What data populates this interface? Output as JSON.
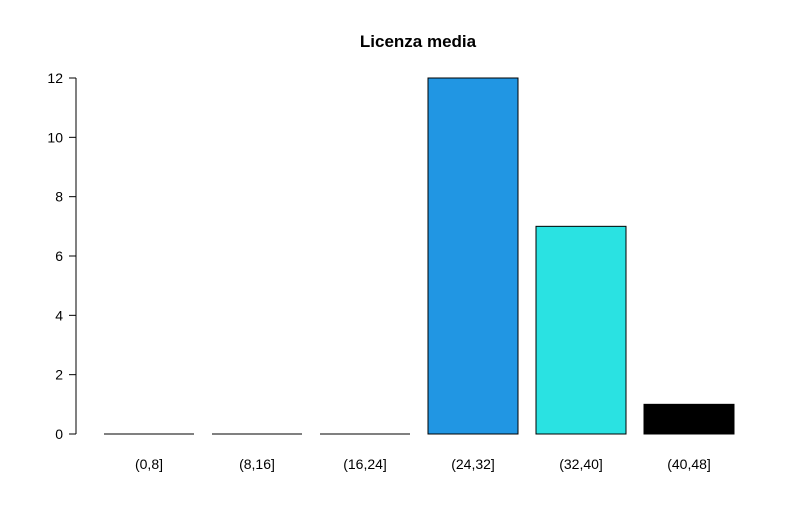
{
  "chart_data": {
    "type": "bar",
    "title": "Licenza media",
    "xlabel": "",
    "ylabel": "",
    "categories": [
      "(0,8]",
      "(8,16]",
      "(16,24]",
      "(24,32]",
      "(32,40]",
      "(40,48]"
    ],
    "values": [
      0,
      0,
      0,
      12,
      7,
      1
    ],
    "colors": [
      "#000000",
      "#000000",
      "#000000",
      "#2196e3",
      "#2ae2e2",
      "#000000"
    ],
    "ylim": [
      0,
      12
    ],
    "yticks": [
      0,
      2,
      4,
      6,
      8,
      10,
      12
    ],
    "grid": false,
    "legend": "none"
  }
}
